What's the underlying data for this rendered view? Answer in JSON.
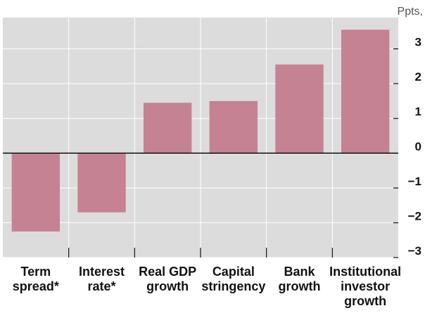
{
  "chart_data": {
    "type": "bar",
    "unit_label": "Ppts,",
    "categories": [
      [
        "Term",
        "spread*"
      ],
      [
        "Interest",
        "rate*"
      ],
      [
        "Real GDP",
        "growth"
      ],
      [
        "Capital",
        "stringency"
      ],
      [
        "Bank",
        "growth"
      ],
      [
        "Institutional",
        "investor",
        "growth"
      ]
    ],
    "values": [
      -2.25,
      -1.7,
      1.45,
      1.5,
      2.55,
      3.55
    ],
    "yticks": [
      "3",
      "2",
      "1",
      "0",
      "−1",
      "−2",
      "−3"
    ],
    "ytick_values": [
      3,
      2,
      1,
      0,
      -1,
      -2,
      -3
    ],
    "ylim": [
      -3,
      3.9
    ],
    "grid": true,
    "colors": {
      "bar": "#c48292",
      "plot_background": "#dcdcdc",
      "grid": "#ffffff",
      "zero_line": "#111111"
    }
  }
}
